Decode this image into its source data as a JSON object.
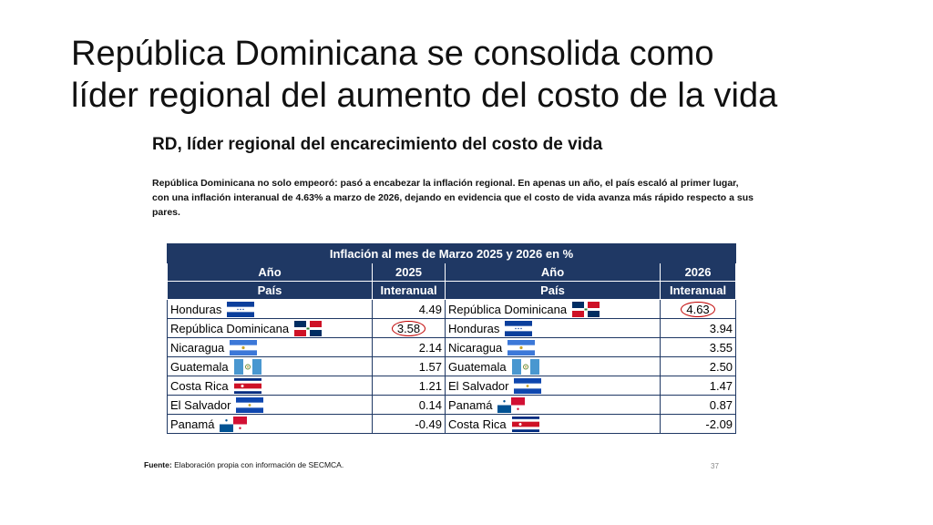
{
  "slide": {
    "title_line1": "República Dominicana se consolida como",
    "title_line2": "líder regional del aumento del costo de la vida",
    "subtitle": "RD, líder regional del encarecimiento del costo de vida",
    "description": "República Dominicana no solo empeoró: pasó a encabezar la inflación regional. En apenas un año, el país escaló al primer lugar, con una inflación interanual de 4.63% a marzo de 2026, dejando en evidencia que el costo de vida avanza más rápido respecto a sus pares.",
    "source_label": "Fuente:",
    "source_text": " Elaboración propia con información de SECMCA.",
    "page_number": "37"
  },
  "table": {
    "title": "Inflación al mes de Marzo 2025 y 2026 en %",
    "year_label": "Año",
    "year_2025": "2025",
    "year_2026": "2026",
    "country_label": "País",
    "interanual_label": "Interanual",
    "left_rows": [
      {
        "country": "Honduras",
        "flag": "honduras-flag",
        "value": "4.49"
      },
      {
        "country": "República Dominicana",
        "flag": "dominican-republic-flag",
        "value": "3.58"
      },
      {
        "country": "Nicaragua",
        "flag": "nicaragua-flag",
        "value": "2.14"
      },
      {
        "country": "Guatemala",
        "flag": "guatemala-flag",
        "value": "1.57"
      },
      {
        "country": "Costa Rica",
        "flag": "costa-rica-flag",
        "value": "1.21"
      },
      {
        "country": "El Salvador",
        "flag": "el-salvador-flag",
        "value": "0.14"
      },
      {
        "country": "Panamá",
        "flag": "panama-flag",
        "value": "-0.49"
      }
    ],
    "right_rows": [
      {
        "country": "República Dominicana",
        "flag": "dominican-republic-flag",
        "value": "4.63"
      },
      {
        "country": "Honduras",
        "flag": "honduras-flag",
        "value": "3.94"
      },
      {
        "country": "Nicaragua",
        "flag": "nicaragua-flag",
        "value": "3.55"
      },
      {
        "country": "Guatemala",
        "flag": "guatemala-flag",
        "value": "2.50"
      },
      {
        "country": "El Salvador",
        "flag": "el-salvador-flag",
        "value": "1.47"
      },
      {
        "country": "Panamá",
        "flag": "panama-flag",
        "value": "0.87"
      },
      {
        "country": "Costa Rica",
        "flag": "costa-rica-flag",
        "value": "-2.09"
      }
    ],
    "highlight_color": "#c00000",
    "header_color": "#1f3864"
  }
}
